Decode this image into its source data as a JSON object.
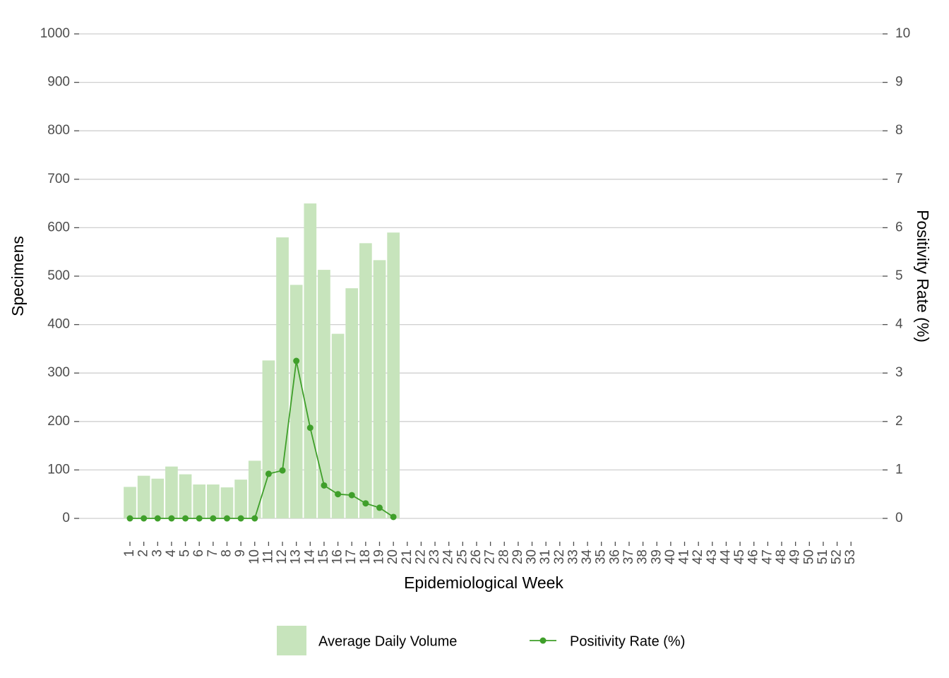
{
  "chart_data": {
    "type": "bar",
    "x_label": "Epidemiological Week",
    "y_label": "Specimens",
    "y2_label": "Positivity Rate (%)",
    "categories": [
      "1",
      "2",
      "3",
      "4",
      "5",
      "6",
      "7",
      "8",
      "9",
      "10",
      "11",
      "12",
      "13",
      "14",
      "15",
      "16",
      "17",
      "18",
      "19",
      "20",
      "21",
      "22",
      "23",
      "24",
      "25",
      "26",
      "27",
      "28",
      "29",
      "30",
      "31",
      "32",
      "33",
      "34",
      "35",
      "36",
      "37",
      "38",
      "39",
      "40",
      "41",
      "42",
      "43",
      "44",
      "45",
      "46",
      "47",
      "48",
      "49",
      "50",
      "51",
      "52",
      "53"
    ],
    "series": [
      {
        "name": "Average Daily Volume",
        "type": "bar",
        "color": "#c7e4bc",
        "values": [
          65,
          88,
          82,
          107,
          91,
          70,
          70,
          64,
          80,
          119,
          326,
          580,
          482,
          650,
          513,
          381,
          475,
          568,
          533,
          590,
          null,
          null,
          null,
          null,
          null,
          null,
          null,
          null,
          null,
          null,
          null,
          null,
          null,
          null,
          null,
          null,
          null,
          null,
          null,
          null,
          null,
          null,
          null,
          null,
          null,
          null,
          null,
          null,
          null,
          null,
          null,
          null,
          null
        ]
      },
      {
        "name": "Positivity Rate (%)",
        "type": "line",
        "axis": "y2",
        "color": "#3f9f2a",
        "values": [
          0,
          0,
          0,
          0,
          0,
          0,
          0,
          0,
          0,
          0,
          0.92,
          0.99,
          3.25,
          1.87,
          0.68,
          0.5,
          0.48,
          0.31,
          0.22,
          0.03,
          null,
          null,
          null,
          null,
          null,
          null,
          null,
          null,
          null,
          null,
          null,
          null,
          null,
          null,
          null,
          null,
          null,
          null,
          null,
          null,
          null,
          null,
          null,
          null,
          null,
          null,
          null,
          null,
          null,
          null,
          null,
          null,
          null
        ]
      }
    ],
    "ylim": [
      0,
      1000
    ],
    "yticks": [
      0,
      100,
      200,
      300,
      400,
      500,
      600,
      700,
      800,
      900,
      1000
    ],
    "y2lim": [
      0,
      10
    ],
    "y2ticks": [
      0,
      1,
      2,
      3,
      4,
      5,
      6,
      7,
      8,
      9,
      10
    ],
    "grid": true,
    "legend": "bottom"
  }
}
